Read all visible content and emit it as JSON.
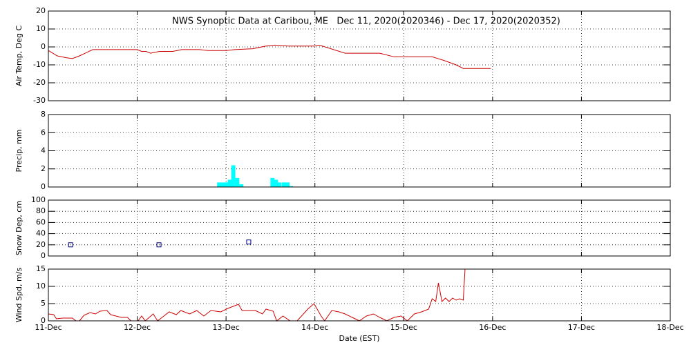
{
  "chart_data": [
    {
      "type": "line",
      "title": "NWS Synoptic Data at Caribou, ME   Dec 11, 2020(2020346) - Dec 17, 2020(2020352)",
      "y_label": "Air Temp, Deg C",
      "color": "#cc0000",
      "x": [
        0,
        0.1,
        0.2,
        0.27,
        0.35,
        0.5,
        1.0,
        1.05,
        1.1,
        1.15,
        1.25,
        1.4,
        1.5,
        1.7,
        1.8,
        2.0,
        2.1,
        2.3,
        2.45,
        2.55,
        2.7,
        3.0,
        3.05,
        3.34,
        3.73,
        3.89,
        4.32,
        4.45,
        4.59,
        4.67,
        4.98
      ],
      "values": [
        -2,
        -5,
        -6,
        -6.5,
        -5,
        -1.5,
        -1.5,
        -2.5,
        -2.5,
        -3.5,
        -2.5,
        -2.5,
        -1.5,
        -1.5,
        -2,
        -2,
        -1.5,
        -1,
        0.5,
        1,
        0.5,
        0.5,
        1,
        -3.5,
        -3.5,
        -5.5,
        -5.5,
        -7.5,
        -10,
        -12,
        -12
      ],
      "xlim": [
        0,
        7
      ],
      "xticks": [
        0,
        1,
        2,
        3,
        4,
        5,
        6,
        7
      ],
      "ylim": [
        -30,
        20
      ],
      "yticks": [
        -30,
        -20,
        -10,
        0,
        10,
        20
      ],
      "grid": true
    },
    {
      "type": "bar",
      "y_label": "Precip, mm",
      "color": "#00ffff",
      "x": [
        1.92,
        1.96,
        2.0,
        2.04,
        2.08,
        2.125,
        2.17,
        2.52,
        2.56,
        2.6,
        2.65,
        2.69,
        2.73
      ],
      "values": [
        0.5,
        0.5,
        0.5,
        0.8,
        2.4,
        1.0,
        0.3,
        1.0,
        0.8,
        0.5,
        0.5,
        0.5,
        0.1
      ],
      "xlim": [
        0,
        7
      ],
      "xticks": [
        0,
        1,
        2,
        3,
        4,
        5,
        6,
        7
      ],
      "ylim": [
        0,
        8
      ],
      "yticks": [
        0,
        2,
        4,
        6,
        8
      ],
      "grid": true
    },
    {
      "type": "scatter",
      "y_label": "Snow Dep, cm",
      "color": "#000080",
      "x": [
        0.25,
        1.245,
        2.255
      ],
      "values": [
        20,
        20,
        25
      ],
      "xlim": [
        0,
        7
      ],
      "xticks": [
        0,
        1,
        2,
        3,
        4,
        5,
        6,
        7
      ],
      "ylim": [
        0,
        100
      ],
      "yticks": [
        0,
        20,
        40,
        60,
        80,
        100
      ],
      "grid": true
    },
    {
      "type": "line",
      "y_label": "Wind Spd, m/s",
      "x_label": "Date (EST)",
      "color": "#cc0000",
      "x": [
        0,
        0.06,
        0.09,
        0.16,
        0.27,
        0.31,
        0.35,
        0.4,
        0.47,
        0.53,
        0.58,
        0.66,
        0.7,
        0.82,
        0.89,
        0.93,
        1.01,
        1.05,
        1.09,
        1.18,
        1.23,
        1.28,
        1.36,
        1.44,
        1.49,
        1.59,
        1.67,
        1.75,
        1.83,
        1.94,
        2.02,
        2.14,
        2.18,
        2.33,
        2.41,
        2.45,
        2.53,
        2.57,
        2.64,
        2.72,
        2.8,
        2.92,
        2.99,
        3.07,
        3.11,
        3.19,
        3.27,
        3.34,
        3.42,
        3.5,
        3.58,
        3.66,
        3.73,
        3.81,
        3.89,
        3.97,
        4.04,
        4.12,
        4.2,
        4.28,
        4.32,
        4.36,
        4.39,
        4.43,
        4.47,
        4.51,
        4.55,
        4.59,
        4.63,
        4.67,
        4.69
      ],
      "values": [
        2,
        1.8,
        0.6,
        0.8,
        0.8,
        0,
        0,
        1.6,
        2.4,
        2,
        2.8,
        3,
        1.8,
        1,
        1,
        0,
        0,
        1.4,
        0,
        2,
        0,
        1,
        2.6,
        1.8,
        3,
        2,
        3,
        1.4,
        3,
        2.6,
        3.6,
        4.8,
        3,
        3,
        2,
        3.4,
        2.8,
        0,
        1.4,
        0,
        0,
        3.4,
        5,
        1.4,
        0,
        3,
        2.6,
        2,
        1,
        0,
        1.4,
        2,
        1,
        0,
        1,
        1.4,
        0,
        2,
        2.6,
        3.4,
        6.4,
        5.6,
        11,
        5.6,
        6.6,
        5.6,
        6.6,
        6,
        6.4,
        6,
        15
      ],
      "xlim": [
        0,
        7
      ],
      "xticks": [
        {
          "value": 0,
          "label": "11-Dec"
        },
        {
          "value": 1,
          "label": "12-Dec"
        },
        {
          "value": 2,
          "label": "13-Dec"
        },
        {
          "value": 3,
          "label": "14-Dec"
        },
        {
          "value": 4,
          "label": "15-Dec"
        },
        {
          "value": 5,
          "label": "16-Dec"
        },
        {
          "value": 6,
          "label": "17-Dec"
        },
        {
          "value": 7,
          "label": "18-Dec"
        }
      ],
      "ylim": [
        0,
        15
      ],
      "yticks": [
        0,
        5,
        10,
        15
      ],
      "grid": true
    }
  ]
}
